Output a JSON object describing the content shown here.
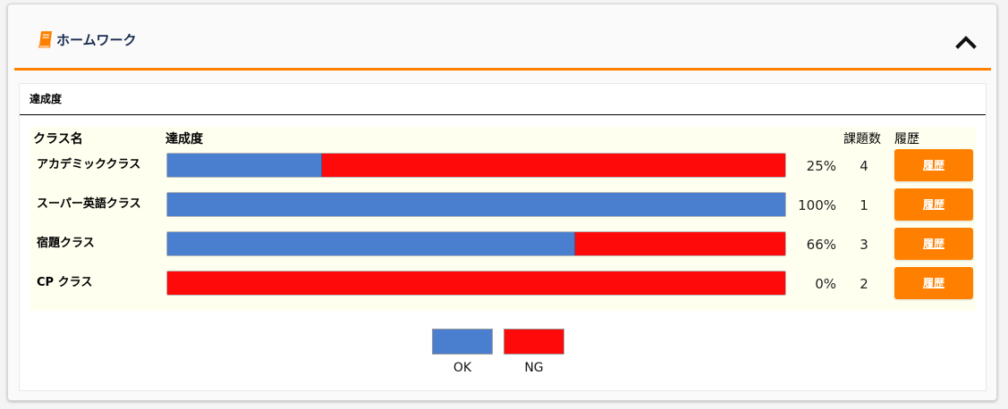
{
  "header": {
    "title": "ホームワーク",
    "icon": "book-icon",
    "collapse_icon": "chevron-up-icon",
    "accent_color": "#ff8000"
  },
  "panel": {
    "title": "達成度"
  },
  "table": {
    "columns": {
      "class_name": "クラス名",
      "progress": "達成度",
      "task_count": "課題数",
      "history": "履歴"
    },
    "rows": [
      {
        "name": "アカデミッククラス",
        "ok_fraction": 0.25,
        "percent": "25%",
        "count": "4",
        "button": "履歴"
      },
      {
        "name": "スーパー英語クラス",
        "ok_fraction": 1.0,
        "percent": "100%",
        "count": "1",
        "button": "履歴"
      },
      {
        "name": "宿題クラス",
        "ok_fraction": 0.66,
        "percent": "66%",
        "count": "3",
        "button": "履歴"
      },
      {
        "name": "CP クラス",
        "ok_fraction": 0.0,
        "percent": "0%",
        "count": "2",
        "button": "履歴"
      }
    ]
  },
  "legend": {
    "ok_label": "OK",
    "ng_label": "NG",
    "ok_color": "#4a7fcf",
    "ng_color": "#fe0a0a"
  }
}
